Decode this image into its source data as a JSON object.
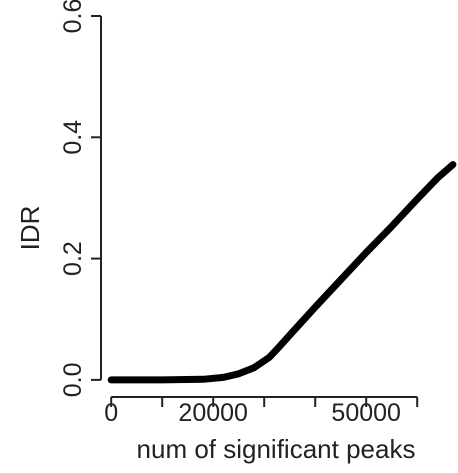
{
  "chart_data": {
    "type": "line",
    "title": "",
    "xlabel": "num of significant peaks",
    "ylabel": "IDR",
    "xlim": [
      -2000,
      68000
    ],
    "ylim": [
      -0.02,
      0.6
    ],
    "x_ticks": [
      0,
      10000,
      20000,
      30000,
      40000,
      50000,
      60000
    ],
    "x_tick_labels": [
      "0",
      "",
      "20000",
      "",
      "",
      "50000",
      ""
    ],
    "y_ticks": [
      0.0,
      0.2,
      0.4,
      0.6
    ],
    "y_tick_labels": [
      "0.0",
      "0.2",
      "0.4",
      "0.6"
    ],
    "grid": false,
    "colors": {
      "line": "#000000",
      "axis": "#222222",
      "text": "#222222"
    },
    "series": [
      {
        "x": [
          0,
          10000,
          18000,
          22000,
          25000,
          28000,
          31000,
          33000,
          36000,
          40000,
          45000,
          50000,
          55000,
          60000,
          64000,
          67000
        ],
        "y": [
          0.0,
          0.0,
          0.001,
          0.004,
          0.01,
          0.02,
          0.037,
          0.055,
          0.083,
          0.12,
          0.165,
          0.21,
          0.253,
          0.298,
          0.333,
          0.355
        ]
      }
    ]
  }
}
